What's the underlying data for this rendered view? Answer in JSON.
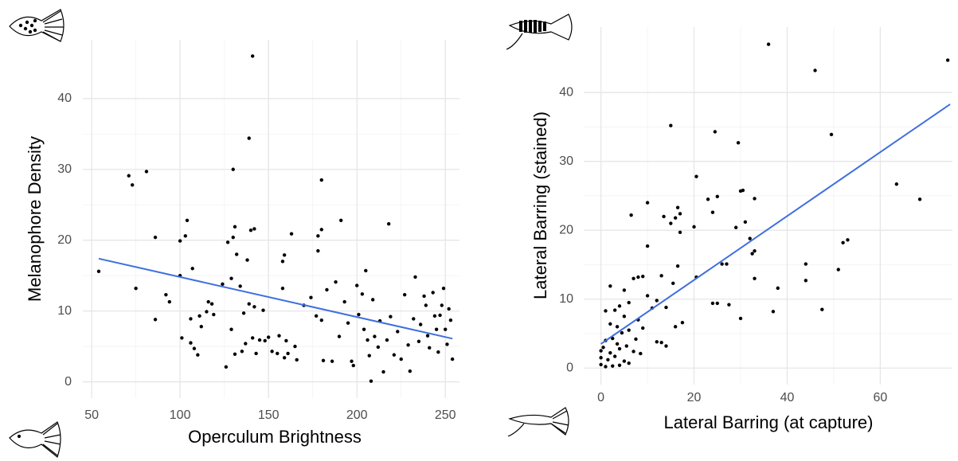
{
  "chart_data": [
    {
      "type": "scatter",
      "x_label": "Operculum Brightness",
      "y_label": "Melanophore Density",
      "xlim": [
        45,
        258
      ],
      "ylim": [
        -2.3,
        48.3
      ],
      "xticks": [
        50,
        100,
        150,
        200,
        250
      ],
      "yticks": [
        0,
        10,
        20,
        30,
        40
      ],
      "grid": true,
      "point_color": "#000000",
      "x": [
        54,
        71,
        73,
        75,
        81,
        86,
        86,
        92,
        94,
        100,
        100,
        101,
        103,
        104,
        106,
        106,
        107,
        108,
        110,
        111,
        112,
        115,
        116,
        118,
        119,
        124,
        126,
        127,
        129,
        129,
        130,
        130,
        131,
        131,
        132,
        134,
        135,
        136,
        137,
        138,
        139,
        139,
        140,
        141,
        141,
        142,
        142,
        143,
        145,
        147,
        148,
        150,
        152,
        155,
        156,
        158,
        158,
        159,
        159,
        160,
        161,
        163,
        165,
        166,
        170,
        174,
        177,
        178,
        178,
        180,
        180,
        180,
        181,
        183,
        186,
        188,
        190,
        191,
        193,
        195,
        197,
        198,
        200,
        201,
        203,
        204,
        205,
        206,
        207,
        208,
        209,
        210,
        212,
        213,
        215,
        217,
        218,
        219,
        221,
        223,
        225,
        227,
        229,
        230,
        232,
        233,
        235,
        236,
        238,
        239,
        240,
        241,
        243,
        244,
        245,
        246,
        247,
        248,
        249,
        250,
        251,
        252,
        253,
        254
      ],
      "values": [
        15.6,
        29.1,
        27.8,
        13.2,
        29.7,
        20.4,
        8.8,
        12.3,
        11.3,
        19.9,
        15,
        6.2,
        20.6,
        22.8,
        8.9,
        5.5,
        16,
        4.7,
        3.8,
        9.3,
        7.8,
        9.9,
        11.3,
        11,
        9.5,
        13.8,
        2.1,
        19.7,
        7.4,
        14.6,
        30,
        20.4,
        21.9,
        3.9,
        18,
        13.5,
        4.3,
        9.7,
        5.4,
        17.2,
        34.4,
        11,
        21.4,
        46,
        6.2,
        21.6,
        10.6,
        4,
        5.9,
        10.1,
        5.8,
        6.3,
        4.3,
        4,
        6.5,
        17,
        13.2,
        17.9,
        3.4,
        5.8,
        4,
        20.9,
        5,
        3.1,
        10.8,
        11.9,
        9.3,
        18.5,
        20.6,
        21.5,
        28.5,
        8.7,
        3,
        13,
        2.9,
        14.1,
        6.4,
        22.8,
        11.3,
        8.3,
        2.9,
        2.3,
        13.6,
        9.5,
        12.4,
        7.4,
        15.7,
        5.9,
        3.7,
        0.1,
        11.6,
        6.4,
        4.9,
        8.6,
        1.4,
        5.9,
        22.3,
        9.2,
        3.8,
        7.1,
        3.2,
        12.3,
        5.2,
        1.5,
        8.9,
        14.8,
        5.7,
        8.1,
        12.1,
        10.8,
        6.5,
        4.8,
        12.6,
        9.3,
        7.4,
        4.2,
        9.4,
        10.8,
        13.2,
        7.4,
        5.3,
        10.3,
        8.7,
        3.2
      ],
      "trend": {
        "x": [
          54,
          254
        ],
        "y": [
          17.4,
          6.1
        ],
        "color": "#3f6fe0"
      }
    },
    {
      "type": "scatter",
      "x_label": "Lateral Barring (at capture)",
      "y_label": "Lateral Barring (stained)",
      "xlim": [
        -3.7,
        75.5
      ],
      "ylim": [
        -2.4,
        49.5
      ],
      "xticks": [
        0,
        20,
        40,
        60
      ],
      "yticks": [
        0,
        10,
        20,
        30,
        40
      ],
      "grid": true,
      "point_color": "#000000",
      "x": [
        0,
        0,
        0,
        0.5,
        1,
        1,
        1,
        1.5,
        2,
        2,
        2,
        2.5,
        2.5,
        3,
        3,
        3.5,
        3.5,
        4,
        4,
        4,
        4.5,
        5,
        5,
        5,
        5.5,
        6,
        6,
        6,
        6.5,
        7,
        7,
        7.5,
        8,
        8,
        8.5,
        9,
        9,
        10,
        10,
        10,
        11,
        12,
        12,
        13,
        13,
        13.5,
        14,
        14,
        15,
        15,
        15.5,
        16,
        16,
        16.5,
        16.5,
        17,
        17,
        17.5,
        20,
        20.5,
        20.5,
        23,
        24,
        24,
        24.5,
        25,
        25,
        26,
        27,
        27.5,
        29,
        29.5,
        30,
        30.5,
        30,
        31,
        32,
        32.5,
        33,
        33,
        33,
        36,
        37,
        38,
        44,
        44,
        46,
        47.5,
        49.5,
        51,
        52,
        53,
        63.5,
        68.5,
        74.5
      ],
      "values": [
        0.5,
        1.5,
        2.5,
        3,
        0.2,
        4,
        8.3,
        1.2,
        2.2,
        6.4,
        11.9,
        0.3,
        4.3,
        1.7,
        8.4,
        3.5,
        6,
        0.4,
        2.8,
        9,
        5.1,
        1,
        7.5,
        11.3,
        3.2,
        0.7,
        5.5,
        9.5,
        22.2,
        2.4,
        13,
        4.2,
        7,
        13.2,
        2.1,
        5.8,
        13.3,
        24,
        17.7,
        10.5,
        8.7,
        9.8,
        3.8,
        13.4,
        3.7,
        22,
        8.8,
        3.2,
        35.2,
        21,
        12.3,
        21.8,
        6,
        14.8,
        23.3,
        22.4,
        19.7,
        6.6,
        20.5,
        13.2,
        27.8,
        24.5,
        22.6,
        9.4,
        34.3,
        24.9,
        9.4,
        15.1,
        15.1,
        9.2,
        20.4,
        32.7,
        25.7,
        25.8,
        7.2,
        21.2,
        18.8,
        16.6,
        24.6,
        13,
        17,
        47,
        8.2,
        11.6,
        15.1,
        12.7,
        43.2,
        8.5,
        33.9,
        14.3,
        18.2,
        18.6,
        26.7,
        24.5,
        44.7
      ],
      "trend": {
        "x": [
          0,
          75
        ],
        "y": [
          3.5,
          38.3
        ],
        "color": "#3f6fe0"
      }
    }
  ]
}
